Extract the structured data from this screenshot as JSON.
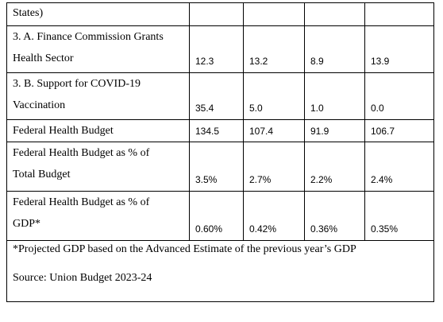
{
  "table": {
    "rows": [
      {
        "label": [
          "States)"
        ],
        "values": [
          "",
          "",
          "",
          ""
        ]
      },
      {
        "label": [
          "3. A. Finance Commission Grants",
          "Health Sector"
        ],
        "values": [
          "12.3",
          "13.2",
          "8.9",
          "13.9"
        ]
      },
      {
        "label": [
          "3. B. Support for COVID-19",
          "Vaccination"
        ],
        "values": [
          "35.4",
          "5.0",
          "1.0",
          "0.0"
        ]
      },
      {
        "label": [
          "Federal Health Budget"
        ],
        "values": [
          "134.5",
          "107.4",
          "91.9",
          "106.7"
        ]
      },
      {
        "label": [
          "Federal Health Budget as % of",
          "Total Budget"
        ],
        "values": [
          "3.5%",
          "2.7%",
          "2.2%",
          "2.4%"
        ]
      },
      {
        "label": [
          "Federal Health Budget as % of",
          "GDP*"
        ],
        "values": [
          "0.60%",
          "0.42%",
          "0.36%",
          "0.35%"
        ]
      }
    ]
  },
  "notes": {
    "footnote": "*Projected GDP based on the Advanced Estimate of the previous year’s GDP",
    "source": "Source: Union Budget 2023-24"
  }
}
